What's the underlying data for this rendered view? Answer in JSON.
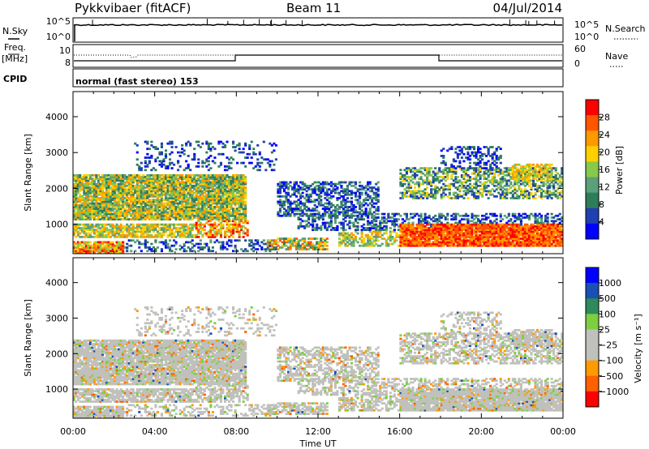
{
  "header": {
    "station": "Pykkvibaer (fitACF)",
    "beam": "Beam 11",
    "date": "04/Jul/2014"
  },
  "panels": {
    "nsky_label": "N.Sky",
    "nsearch_label": "N.Search",
    "nsky_ticks": [
      "10^5",
      "10^0"
    ],
    "nsearch_ticks": [
      "10^5",
      "10^0"
    ],
    "freq_label": "Freq.",
    "freq_unit": "[MHz]",
    "freq_ticks": [
      "10",
      "8"
    ],
    "nave_label": "Nave",
    "nave_ticks": [
      "60",
      "0"
    ],
    "cpid_label": "CPID",
    "cpid_text": "normal (fast stereo) 153"
  },
  "colors": {
    "scatter_gray": "#c0c0bc",
    "power_scale": [
      "#0000ff",
      "#2040b0",
      "#2e7d5a",
      "#5aa07a",
      "#88c84a",
      "#ffd000",
      "#ff9900",
      "#ff5500",
      "#ff0000"
    ],
    "velocity_scale": [
      "#0000ff",
      "#1a50b4",
      "#2e8a5a",
      "#7ccf40",
      "#c0c0bc",
      "#c0c0bc",
      "#ff9a00",
      "#ff6000",
      "#ff0000"
    ]
  },
  "chart_data": [
    {
      "type": "heatmap",
      "name": "power",
      "xlabel": "Time UT",
      "ylabel": "Slant Range [km]",
      "x_ticks": [
        "00:00",
        "04:00",
        "08:00",
        "12:00",
        "16:00",
        "20:00",
        "00:00"
      ],
      "y_ticks": [
        "1000",
        "2000",
        "3000",
        "4000"
      ],
      "y_tick_values": [
        1000,
        2000,
        3000,
        4000
      ],
      "xlim_hours": [
        0,
        24
      ],
      "ylim_km": [
        180,
        4700
      ],
      "colorbar": {
        "label": "Power [dB]",
        "ticks": [
          "4",
          "8",
          "12",
          "16",
          "20",
          "24",
          "28"
        ],
        "range": [
          0,
          30
        ]
      }
    },
    {
      "type": "heatmap",
      "name": "velocity",
      "xlabel": "Time UT",
      "ylabel": "Slant Range [km]",
      "x_ticks": [
        "00:00",
        "04:00",
        "08:00",
        "12:00",
        "16:00",
        "20:00",
        "00:00"
      ],
      "y_ticks": [
        "1000",
        "2000",
        "3000",
        "4000"
      ],
      "y_tick_values": [
        1000,
        2000,
        3000,
        4000
      ],
      "xlim_hours": [
        0,
        24
      ],
      "ylim_km": [
        180,
        4700
      ],
      "colorbar": {
        "label": "Velocity [m s⁻¹]",
        "ticks": [
          "1000",
          "500",
          "100",
          "25",
          "−25",
          "−100",
          "−500",
          "−1000"
        ]
      }
    }
  ]
}
